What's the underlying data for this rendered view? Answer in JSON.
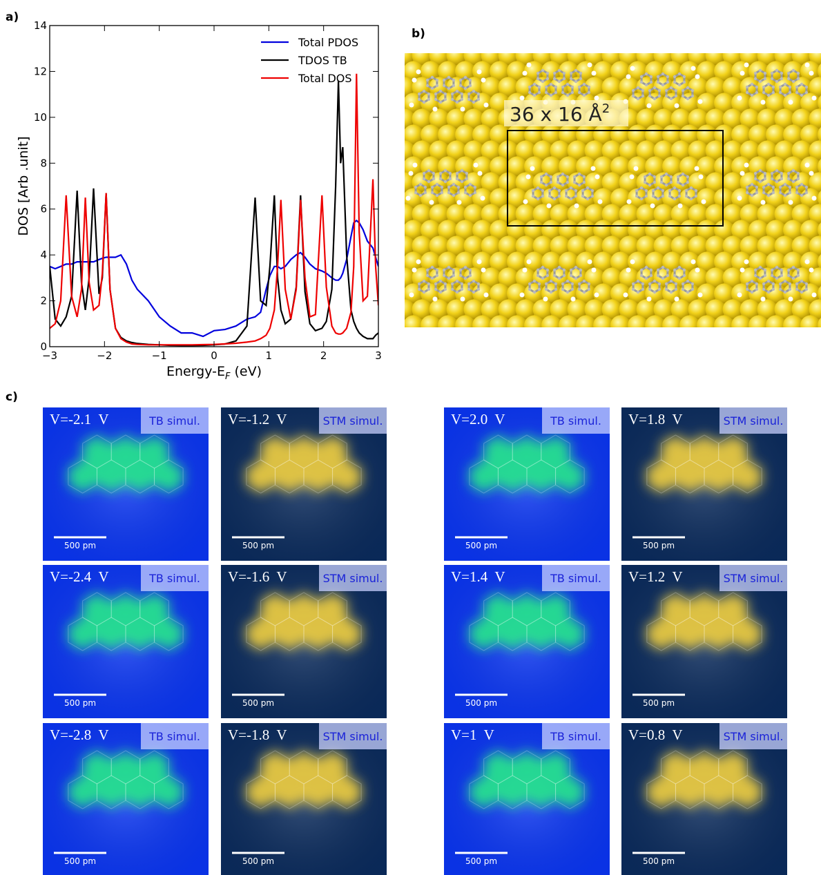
{
  "panel_labels": [
    "a)",
    "b)",
    "c)"
  ],
  "chart_data": {
    "type": "line",
    "xlabel": {
      "text": "Energy-E",
      "sub": "F",
      "unit": " (eV)"
    },
    "ylabel": "DOS [Arb .unit]",
    "x": [
      -3,
      -2.9,
      -2.8,
      -2.7,
      -2.6,
      -2.5,
      -2.42,
      -2.35,
      -2.28,
      -2.2,
      -2.1,
      -2.04,
      -1.97,
      -1.9,
      -1.8,
      -1.7,
      -1.6,
      -1.5,
      -1.4,
      -1.2,
      -1.0,
      -0.8,
      -0.6,
      -0.4,
      -0.2,
      0,
      0.2,
      0.4,
      0.6,
      0.75,
      0.85,
      0.95,
      1.02,
      1.1,
      1.16,
      1.22,
      1.3,
      1.4,
      1.5,
      1.58,
      1.66,
      1.75,
      1.85,
      1.97,
      2.05,
      2.15,
      2.22,
      2.27,
      2.31,
      2.35,
      2.42,
      2.5,
      2.55,
      2.6,
      2.65,
      2.72,
      2.8,
      2.9,
      2.95,
      3.0
    ],
    "series": [
      {
        "name": "Total PDOS",
        "color": "#0000dd",
        "values": [
          3.5,
          3.4,
          3.5,
          3.6,
          3.6,
          3.7,
          3.7,
          3.7,
          3.7,
          3.7,
          3.8,
          3.85,
          3.9,
          3.9,
          3.9,
          4.0,
          3.6,
          2.9,
          2.5,
          2.0,
          1.3,
          0.9,
          0.6,
          0.6,
          0.45,
          0.7,
          0.75,
          0.9,
          1.2,
          1.3,
          1.5,
          2.5,
          3.1,
          3.5,
          3.5,
          3.4,
          3.5,
          3.8,
          4.0,
          4.1,
          3.9,
          3.6,
          3.4,
          3.3,
          3.2,
          3.0,
          2.9,
          2.9,
          3.0,
          3.2,
          3.8,
          4.8,
          5.4,
          5.5,
          5.4,
          5.1,
          4.6,
          4.3,
          3.9,
          3.5
        ]
      },
      {
        "name": "TDOS TB",
        "color": "#000000",
        "values": [
          3.5,
          1.2,
          0.9,
          1.3,
          2.2,
          6.8,
          2.8,
          1.6,
          3.0,
          6.9,
          2.3,
          3.0,
          6.7,
          2.5,
          0.8,
          0.4,
          0.25,
          0.18,
          0.14,
          0.1,
          0.08,
          0.06,
          0.05,
          0.05,
          0.06,
          0.08,
          0.12,
          0.25,
          0.9,
          6.5,
          2.0,
          1.8,
          3.5,
          6.6,
          3.0,
          1.6,
          1.0,
          1.2,
          2.6,
          6.6,
          2.4,
          1.0,
          0.7,
          0.8,
          1.1,
          2.5,
          7.0,
          11.6,
          8.0,
          8.7,
          4.0,
          1.6,
          1.1,
          0.8,
          0.6,
          0.45,
          0.35,
          0.35,
          0.5,
          0.6
        ]
      },
      {
        "name": "Total DOS",
        "color": "#ee0000",
        "values": [
          0.8,
          1.0,
          2.0,
          6.6,
          2.2,
          1.3,
          2.5,
          6.5,
          2.8,
          1.6,
          1.8,
          3.2,
          6.7,
          2.5,
          0.8,
          0.35,
          0.2,
          0.12,
          0.1,
          0.08,
          0.08,
          0.08,
          0.08,
          0.08,
          0.09,
          0.1,
          0.12,
          0.15,
          0.2,
          0.25,
          0.35,
          0.5,
          0.8,
          1.6,
          3.5,
          6.4,
          2.5,
          1.2,
          2.5,
          6.4,
          3.0,
          1.3,
          1.4,
          6.6,
          2.6,
          0.9,
          0.6,
          0.55,
          0.55,
          0.6,
          0.8,
          1.5,
          3.5,
          11.9,
          5.0,
          2.0,
          2.2,
          7.3,
          3.5,
          1.8
        ]
      }
    ],
    "xlim": [
      -3,
      3
    ],
    "ylim": [
      0,
      14
    ],
    "xticks": [
      {
        "value": -3,
        "label": "−3"
      },
      {
        "value": -2,
        "label": "−2"
      },
      {
        "value": -1,
        "label": "−1"
      },
      0,
      1,
      2,
      3
    ],
    "yticks": [
      0,
      2,
      4,
      6,
      8,
      10,
      12,
      14
    ],
    "legend": "upper right"
  },
  "structure": {
    "label": "36 x 16 Å",
    "label_sup": "2"
  },
  "tiles": [
    {
      "voltage": "V=-2.1  V",
      "badge": "TB simul.",
      "scale_bar": "500 pm",
      "background": "#0a35f0",
      "glow": "#28e88a"
    },
    {
      "voltage": "V=-1.2  V",
      "badge": "STM simul.",
      "scale_bar": "500 pm",
      "background": "#0b2b5c",
      "glow": "#f2d040"
    },
    {
      "voltage": "V=2.0  V",
      "badge": "TB simul.",
      "scale_bar": "500 pm",
      "background": "#0a35f0",
      "glow": "#28e88a"
    },
    {
      "voltage": "V=1.8  V",
      "badge": "STM simul.",
      "scale_bar": "500 pm",
      "background": "#0b2b5c",
      "glow": "#f2d040"
    },
    {
      "voltage": "V=-2.4  V",
      "badge": "TB simul.",
      "scale_bar": "500 pm",
      "background": "#0a35f0",
      "glow": "#28e88a"
    },
    {
      "voltage": "V=-1.6  V",
      "badge": "STM simul.",
      "scale_bar": "500 pm",
      "background": "#0b2b5c",
      "glow": "#f2d040"
    },
    {
      "voltage": "V=1.4  V",
      "badge": "TB simul.",
      "scale_bar": "500 pm",
      "background": "#0a35f0",
      "glow": "#28e88a"
    },
    {
      "voltage": "V=1.2  V",
      "badge": "STM simul.",
      "scale_bar": "500 pm",
      "background": "#0b2b5c",
      "glow": "#f2d040"
    },
    {
      "voltage": "V=-2.8  V",
      "badge": "TB simul.",
      "scale_bar": "500 pm",
      "background": "#0a35f0",
      "glow": "#28e88a"
    },
    {
      "voltage": "V=-1.8  V",
      "badge": "STM simul.",
      "scale_bar": "500 pm",
      "background": "#0b2b5c",
      "glow": "#f2d040"
    },
    {
      "voltage": "V=1  V",
      "badge": "TB simul.",
      "scale_bar": "500 pm",
      "background": "#0a35f0",
      "glow": "#28e88a"
    },
    {
      "voltage": "V=0.8  V",
      "badge": "STM simul.",
      "scale_bar": "500 pm",
      "background": "#0b2b5c",
      "glow": "#f2d040"
    }
  ]
}
